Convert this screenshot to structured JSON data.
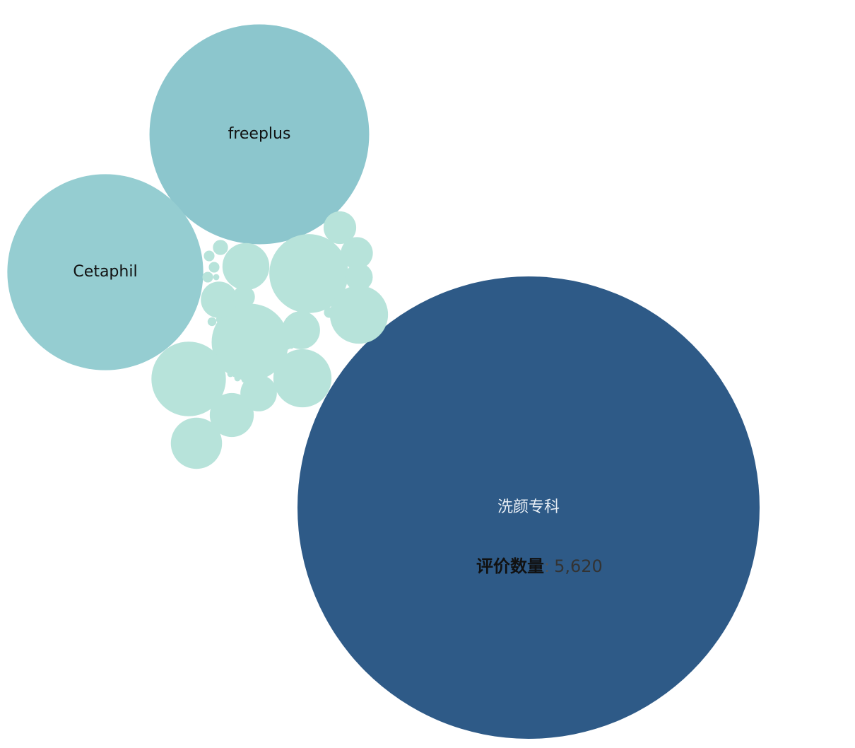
{
  "chart_data": {
    "type": "bubble",
    "size_measure": "评价数量",
    "nodes": [
      {
        "name": "洗颜专科",
        "value": 5620,
        "labeled": true,
        "color": "#2e5a87"
      },
      {
        "name": "freeplus",
        "value": 1270,
        "labeled": true,
        "color": "#8cc6cd"
      },
      {
        "name": "Cetaphil",
        "value": 1010,
        "labeled": true,
        "color": "#95cdd1"
      },
      {
        "value": 164,
        "color": "#b7e3da"
      },
      {
        "value": 156,
        "color": "#b7e3da"
      },
      {
        "value": 146,
        "color": "#b7e3da"
      },
      {
        "value": 89,
        "color": "#b7e3da"
      },
      {
        "value": 89,
        "color": "#b7e3da"
      },
      {
        "value": 69,
        "color": "#b7e3da"
      },
      {
        "value": 58,
        "color": "#b7e3da"
      },
      {
        "value": 51,
        "color": "#b7e3da"
      },
      {
        "value": 38,
        "color": "#b7e3da"
      },
      {
        "value": 35,
        "color": "#b7e3da"
      },
      {
        "value": 35,
        "color": "#b7e3da"
      },
      {
        "value": 28,
        "color": "#b7e3da"
      },
      {
        "value": 27,
        "color": "#b7e3da"
      },
      {
        "value": 20,
        "color": "#b7e3da"
      },
      {
        "value": 13,
        "color": "#b7e3da"
      },
      {
        "value": 6,
        "color": "#b7e3da"
      },
      {
        "value": 3,
        "color": "#b7e3da"
      },
      {
        "value": 3,
        "color": "#b7e3da"
      },
      {
        "value": 3,
        "color": "#b7e3da"
      },
      {
        "value": 3,
        "color": "#b7e3da"
      },
      {
        "value": 2,
        "color": "#b7e3da"
      },
      {
        "value": 1,
        "color": "#b7e3da"
      },
      {
        "value": 1,
        "color": "#b7e3da"
      },
      {
        "value": 1,
        "color": "#b7e3da"
      },
      {
        "value": 1,
        "color": "#b7e3da"
      },
      {
        "value": 1,
        "color": "#b7e3da"
      },
      {
        "value": 1,
        "color": "#b7e3da"
      },
      {
        "value": 1,
        "color": "#b7e3da"
      },
      {
        "value": 1,
        "color": "#b7e3da"
      }
    ]
  },
  "tooltip": {
    "key": "评价数量",
    "separator": ":",
    "value": "5,620"
  },
  "colors": {
    "dark_label": "#111111",
    "light_label": "#e8eef5"
  }
}
